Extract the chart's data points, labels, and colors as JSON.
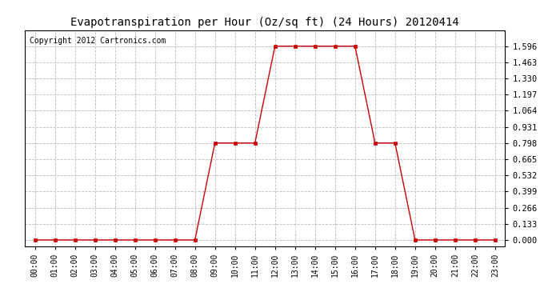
{
  "title": "Evapotranspiration per Hour (Oz/sq ft) (24 Hours) 20120414",
  "copyright": "Copyright 2012 Cartronics.com",
  "hours": [
    0,
    1,
    2,
    3,
    4,
    5,
    6,
    7,
    8,
    9,
    10,
    11,
    12,
    13,
    14,
    15,
    16,
    17,
    18,
    19,
    20,
    21,
    22,
    23
  ],
  "values": [
    0.0,
    0.0,
    0.0,
    0.0,
    0.0,
    0.0,
    0.0,
    0.0,
    0.0,
    0.798,
    0.798,
    0.798,
    1.596,
    1.596,
    1.596,
    1.596,
    1.596,
    0.798,
    0.798,
    0.0,
    0.0,
    0.0,
    0.0,
    0.0
  ],
  "yticks": [
    0.0,
    0.133,
    0.266,
    0.399,
    0.532,
    0.665,
    0.798,
    0.931,
    1.064,
    1.197,
    1.33,
    1.463,
    1.596
  ],
  "line_color": "#cc0000",
  "marker": "s",
  "marker_size": 2.5,
  "bg_color": "#ffffff",
  "plot_bg_color": "#ffffff",
  "grid_color": "#bbbbbb",
  "title_fontsize": 10,
  "copyright_fontsize": 7,
  "tick_label_fontsize": 7,
  "ytick_label_fontsize": 7.5,
  "xlim": [
    -0.5,
    23.5
  ],
  "ylim": [
    -0.05,
    1.729
  ]
}
